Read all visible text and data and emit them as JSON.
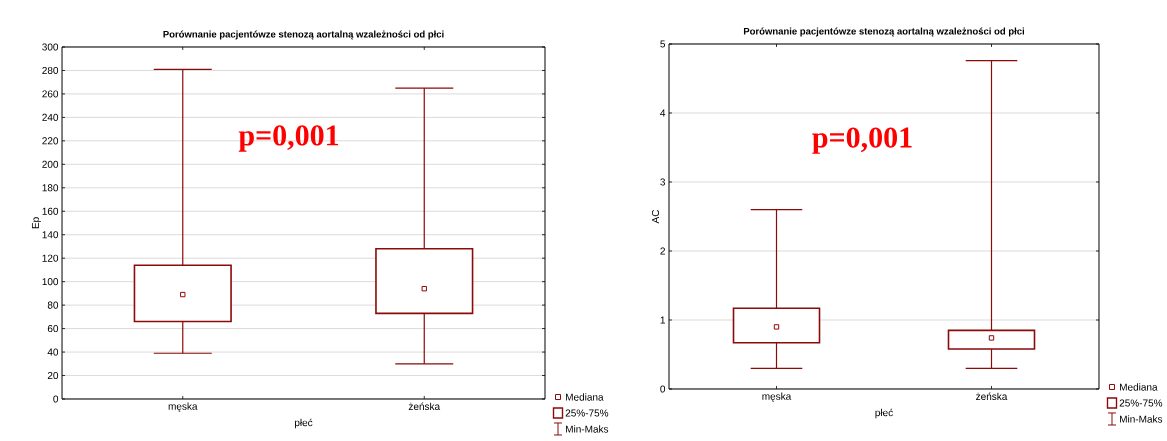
{
  "chart_data": [
    {
      "type": "box",
      "title": "Porównanie pacjentówze stenozą aortalną wzależności od płci",
      "xlabel": "płeć",
      "ylabel": "Ep",
      "categories": [
        "męska",
        "żeńska"
      ],
      "boxes": [
        {
          "low": 39,
          "q1": 66,
          "median": 89,
          "q3": 114,
          "high": 281
        },
        {
          "low": 30,
          "q1": 73,
          "median": 94,
          "q3": 128,
          "high": 265
        }
      ],
      "color": "#8b0a0a",
      "ylim": [
        0,
        300
      ],
      "yticks": [
        0,
        20,
        40,
        60,
        80,
        100,
        120,
        140,
        160,
        180,
        200,
        220,
        240,
        260,
        280,
        300
      ],
      "grid": "y",
      "annotations": [
        "p=0,001",
        "Mediana",
        "25%-75%",
        "Min-Maks"
      ]
    },
    {
      "type": "box",
      "title": "Porównanie pacjentówze stenozą aortalną wzależności od płci",
      "xlabel": "płeć",
      "ylabel": "AC",
      "categories": [
        "męska",
        "żeńska"
      ],
      "boxes": [
        {
          "low": 0.3,
          "q1": 0.67,
          "median": 0.9,
          "q3": 1.17,
          "high": 2.6
        },
        {
          "low": 0.3,
          "q1": 0.58,
          "median": 0.74,
          "q3": 0.85,
          "high": 4.76
        }
      ],
      "color": "#8b0a0a",
      "ylim": [
        0,
        5
      ],
      "yticks": [
        0,
        1,
        2,
        3,
        4,
        5
      ],
      "grid": "y",
      "annotations": [
        "p=0,001",
        "Mediana",
        "25%-75%",
        "Min-Maks"
      ]
    }
  ]
}
